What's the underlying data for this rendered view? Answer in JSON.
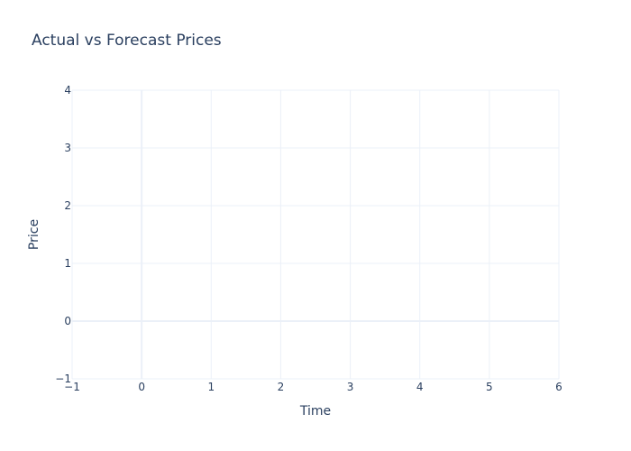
{
  "chart_data": {
    "type": "line",
    "title": "Actual vs Forecast Prices",
    "xlabel": "Time",
    "ylabel": "Price",
    "xlim": [
      -1,
      6
    ],
    "ylim": [
      -1,
      4
    ],
    "x_ticks": [
      -1,
      0,
      1,
      2,
      3,
      4,
      5,
      6
    ],
    "y_ticks": [
      -1,
      0,
      1,
      2,
      3,
      4
    ],
    "x_tick_labels": [
      "−1",
      "0",
      "1",
      "2",
      "3",
      "4",
      "5",
      "6"
    ],
    "y_tick_labels": [
      "−1",
      "0",
      "1",
      "2",
      "3",
      "4"
    ],
    "grid": true,
    "series": [],
    "colors": {
      "text": "#2a3f5f",
      "grid": "#ebf0f8",
      "zeroline": "#ebf0f8",
      "background": "#ffffff"
    }
  }
}
